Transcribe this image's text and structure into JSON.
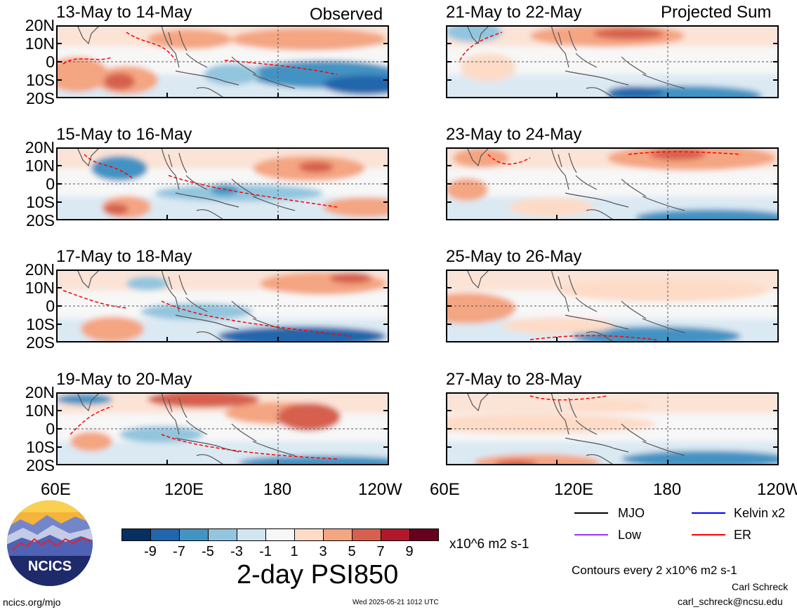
{
  "column_labels": {
    "left": "Observed",
    "right": "Projected Sum"
  },
  "panels": [
    {
      "title": "13-May to 14-May"
    },
    {
      "title": "15-May to 16-May"
    },
    {
      "title": "17-May to 18-May"
    },
    {
      "title": "19-May to 20-May"
    },
    {
      "title": "21-May to 22-May"
    },
    {
      "title": "23-May to 24-May"
    },
    {
      "title": "25-May to 26-May"
    },
    {
      "title": "27-May to 28-May"
    }
  ],
  "lat_labels": [
    "20N",
    "10N",
    "0",
    "10S",
    "20S"
  ],
  "lon_labels": [
    "60E",
    "120E",
    "180",
    "120W"
  ],
  "colorbar": {
    "colors": [
      "#053061",
      "#2166ac",
      "#4393c3",
      "#92c5de",
      "#d1e5f0",
      "#f7f7f7",
      "#fddbc7",
      "#f4a582",
      "#d6604d",
      "#b2182b",
      "#67001f"
    ],
    "labels": [
      "-9",
      "-7",
      "-5",
      "-3",
      "-1",
      "1",
      "3",
      "5",
      "7",
      "9"
    ],
    "units": "x10^6 m2 s-1"
  },
  "title": "2-day PSI850",
  "legend": [
    {
      "label": "MJO",
      "color": "#000000"
    },
    {
      "label": "Kelvin x2",
      "color": "#0000ff"
    },
    {
      "label": "Low",
      "color": "#9933ff"
    },
    {
      "label": "ER",
      "color": "#ff0000"
    }
  ],
  "contours_note": "Contours every 2 x10^6 m2 s-1",
  "author": "Carl Schreck",
  "email": "carl_schreck@ncsu.edu",
  "website": "ncics.org/mjo",
  "timestamp": "Wed 2025-05-21 1012 UTC",
  "logo_text": "NCICS"
}
